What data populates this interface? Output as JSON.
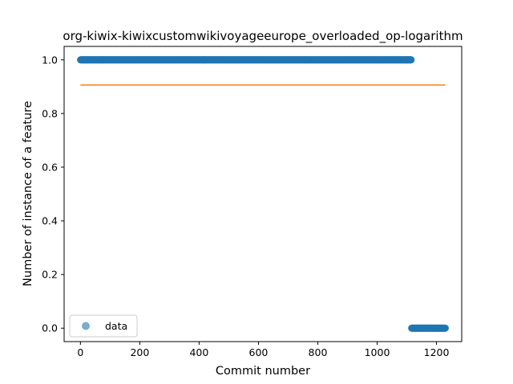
{
  "chart_data": {
    "type": "scatter",
    "title": "org-kiwix-kiwixcustomwikivoyageeurope_overloaded_op-logarithm",
    "xlabel": "Commit number",
    "ylabel": "Number of instance of a feature",
    "xlim": [
      -55,
      1285
    ],
    "ylim": [
      -0.05,
      1.05
    ],
    "xticks": [
      0,
      200,
      400,
      600,
      800,
      1000,
      1200
    ],
    "yticks": [
      0.0,
      0.2,
      0.4,
      0.6,
      0.8,
      1.0
    ],
    "xtick_labels": [
      "0",
      "200",
      "400",
      "600",
      "800",
      "1000",
      "1200"
    ],
    "ytick_labels": [
      "0.0",
      "0.2",
      "0.4",
      "0.6",
      "0.8",
      "1.0"
    ],
    "grid": false,
    "legend_position": "lower-left",
    "series": [
      {
        "name": "data",
        "kind": "scatter",
        "color": "#1f77b4",
        "segments": [
          {
            "x_start": 0,
            "x_end": 1115,
            "y": 1.0
          },
          {
            "x_start": 1116,
            "x_end": 1230,
            "y": 0.0
          }
        ]
      },
      {
        "kind": "line",
        "color": "#ff7f0e",
        "x": [
          0,
          1230
        ],
        "y": [
          0.906,
          0.906
        ]
      }
    ]
  }
}
